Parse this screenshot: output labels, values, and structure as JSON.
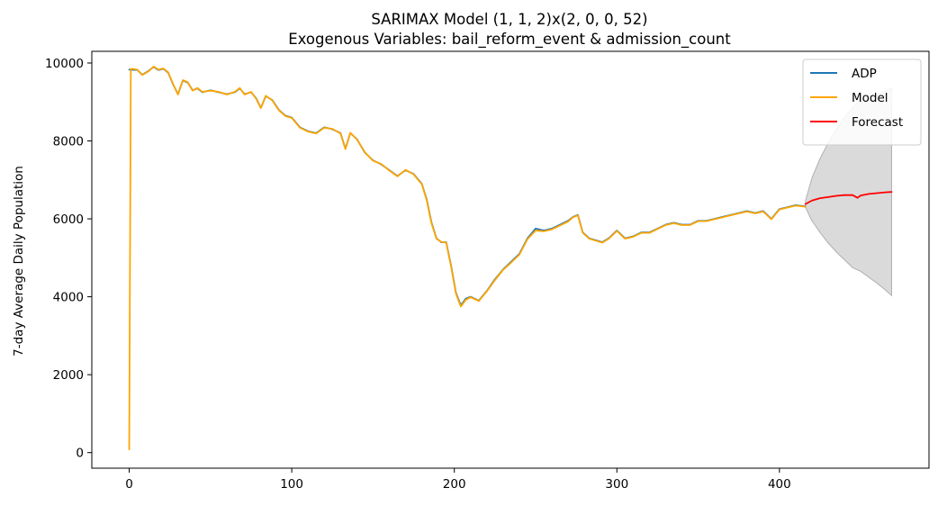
{
  "chart_data": {
    "type": "line",
    "title": "SARIMAX Model (1, 1, 2)x(2, 0, 0, 52)",
    "subtitle": "Exogenous Variables: bail_reform_event & admission_count",
    "xlabel": "",
    "ylabel": "7-day Average Daily Population",
    "xlim": [
      -23,
      492
    ],
    "ylim": [
      -400,
      10300
    ],
    "xticks": [
      0,
      100,
      200,
      300,
      400
    ],
    "yticks": [
      0,
      2000,
      4000,
      6000,
      8000,
      10000
    ],
    "grid": false,
    "legend_position": "top-right",
    "series": [
      {
        "name": "ADP",
        "color": "#1f77b4",
        "x": [
          0,
          5,
          8,
          12,
          15,
          18,
          21,
          24,
          27,
          30,
          33,
          36,
          39,
          42,
          45,
          50,
          55,
          60,
          65,
          68,
          71,
          75,
          78,
          81,
          84,
          88,
          92,
          96,
          100,
          105,
          110,
          115,
          120,
          125,
          130,
          133,
          136,
          140,
          145,
          150,
          155,
          160,
          165,
          170,
          175,
          180,
          183,
          186,
          189,
          192,
          195,
          198,
          201,
          204,
          207,
          210,
          215,
          220,
          225,
          230,
          235,
          240,
          245,
          250,
          255,
          260,
          265,
          270,
          273,
          276,
          279,
          283,
          287,
          291,
          295,
          300,
          305,
          310,
          315,
          320,
          325,
          330,
          335,
          340,
          345,
          350,
          355,
          360,
          365,
          370,
          375,
          380,
          385,
          390,
          395,
          400,
          405,
          410,
          416
        ],
        "values": [
          9830,
          9820,
          9700,
          9800,
          9900,
          9820,
          9850,
          9750,
          9450,
          9200,
          9550,
          9500,
          9300,
          9350,
          9250,
          9300,
          9250,
          9200,
          9250,
          9350,
          9200,
          9250,
          9100,
          8850,
          9150,
          9050,
          8800,
          8650,
          8600,
          8350,
          8250,
          8200,
          8350,
          8300,
          8200,
          7800,
          8200,
          8050,
          7700,
          7500,
          7400,
          7250,
          7100,
          7250,
          7150,
          6900,
          6500,
          5900,
          5500,
          5400,
          5400,
          4800,
          4100,
          3780,
          3950,
          4000,
          3900,
          4150,
          4450,
          4700,
          4900,
          5100,
          5500,
          5750,
          5700,
          5750,
          5850,
          5950,
          6050,
          6100,
          5650,
          5500,
          5450,
          5400,
          5500,
          5700,
          5500,
          5550,
          5650,
          5650,
          5750,
          5850,
          5900,
          5850,
          5850,
          5950,
          5950,
          6000,
          6050,
          6100,
          6150,
          6200,
          6150,
          6200,
          6000,
          6250,
          6300,
          6350,
          6320
        ]
      },
      {
        "name": "Model",
        "color": "#ffa500",
        "x": [
          0,
          1,
          2,
          5,
          8,
          12,
          15,
          18,
          21,
          24,
          27,
          30,
          33,
          36,
          39,
          42,
          45,
          50,
          55,
          60,
          65,
          68,
          71,
          75,
          78,
          81,
          84,
          88,
          92,
          96,
          100,
          105,
          110,
          115,
          120,
          125,
          130,
          133,
          136,
          140,
          145,
          150,
          155,
          160,
          165,
          170,
          175,
          180,
          183,
          186,
          189,
          192,
          195,
          198,
          201,
          204,
          207,
          210,
          215,
          220,
          225,
          230,
          235,
          240,
          245,
          250,
          255,
          260,
          265,
          270,
          273,
          276,
          279,
          283,
          287,
          291,
          295,
          300,
          305,
          310,
          315,
          320,
          325,
          330,
          335,
          340,
          345,
          350,
          355,
          360,
          365,
          370,
          375,
          380,
          385,
          390,
          395,
          400,
          405,
          410,
          416
        ],
        "values": [
          80,
          9850,
          9850,
          9830,
          9690,
          9790,
          9910,
          9830,
          9860,
          9760,
          9460,
          9190,
          9560,
          9510,
          9290,
          9360,
          9260,
          9290,
          9260,
          9190,
          9260,
          9360,
          9190,
          9260,
          9090,
          8840,
          9160,
          9040,
          8790,
          8640,
          8590,
          8340,
          8240,
          8190,
          8340,
          8310,
          8190,
          7790,
          8210,
          8040,
          7710,
          7490,
          7410,
          7240,
          7090,
          7260,
          7140,
          6890,
          6480,
          5880,
          5490,
          5410,
          5390,
          4780,
          4080,
          3750,
          3920,
          3990,
          3890,
          4140,
          4430,
          4690,
          4880,
          5080,
          5480,
          5700,
          5680,
          5730,
          5830,
          5930,
          6040,
          6090,
          5640,
          5490,
          5440,
          5390,
          5490,
          5690,
          5490,
          5540,
          5640,
          5640,
          5740,
          5840,
          5890,
          5840,
          5840,
          5940,
          5940,
          5990,
          6040,
          6090,
          6140,
          6190,
          6140,
          6190,
          5990,
          6240,
          6290,
          6340,
          6310
        ]
      },
      {
        "name": "Forecast",
        "color": "#ff0000",
        "x": [
          416,
          420,
          425,
          430,
          435,
          440,
          445,
          448,
          450,
          455,
          460,
          465,
          469
        ],
        "values": [
          6380,
          6470,
          6530,
          6560,
          6590,
          6610,
          6610,
          6540,
          6600,
          6640,
          6660,
          6680,
          6690
        ]
      }
    ],
    "confidence_band": {
      "color": "#d3d3d3",
      "x": [
        416,
        420,
        425,
        430,
        435,
        440,
        445,
        450,
        455,
        460,
        465,
        469
      ],
      "lower": [
        6300,
        5950,
        5650,
        5380,
        5150,
        4950,
        4750,
        4650,
        4500,
        4350,
        4180,
        4030
      ],
      "upper": [
        6460,
        7050,
        7550,
        7950,
        8300,
        8600,
        8850,
        9050,
        9150,
        9200,
        9270,
        9350
      ]
    }
  }
}
